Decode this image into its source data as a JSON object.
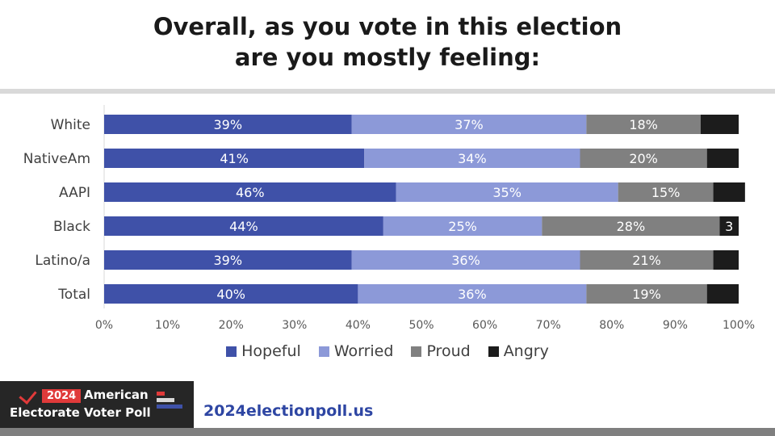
{
  "title": {
    "line1": "Overall, as you vote in this election",
    "line2": "are you mostly feeling:"
  },
  "colors": {
    "hopeful": "#3f51a8",
    "worried": "#8c99d8",
    "proud": "#808080",
    "angry": "#1c1c1c",
    "rule": "#d9d9d9",
    "footer_gray": "#7f7f7f",
    "brand_red": "#e03a3a",
    "brand_blue": "#2e46a3"
  },
  "chart_data": {
    "type": "bar",
    "orientation": "horizontal",
    "stacked": true,
    "categories": [
      "White",
      "NativeAm",
      "AAPI",
      "Black",
      "Latino/a",
      "Total"
    ],
    "series": [
      {
        "name": "Hopeful",
        "values": [
          39,
          41,
          46,
          44,
          39,
          40
        ],
        "labels": [
          "39%",
          "41%",
          "46%",
          "44%",
          "39%",
          "40%"
        ],
        "color": "#3f51a8"
      },
      {
        "name": "Worried",
        "values": [
          37,
          34,
          35,
          25,
          36,
          36
        ],
        "labels": [
          "37%",
          "34%",
          "35%",
          "25%",
          "36%",
          "36%"
        ],
        "color": "#8c99d8"
      },
      {
        "name": "Proud",
        "values": [
          18,
          20,
          15,
          28,
          21,
          19
        ],
        "labels": [
          "18%",
          "20%",
          "15%",
          "28%",
          "21%",
          "19%"
        ],
        "color": "#808080"
      },
      {
        "name": "Angry",
        "values": [
          6,
          5,
          5,
          3,
          4,
          5
        ],
        "labels": [
          "",
          "",
          "",
          "3",
          "",
          ""
        ],
        "color": "#1c1c1c"
      }
    ],
    "xlim": [
      0,
      100
    ],
    "x_ticks": [
      "0%",
      "10%",
      "20%",
      "30%",
      "40%",
      "50%",
      "60%",
      "70%",
      "80%",
      "90%",
      "100%"
    ],
    "grid": false,
    "legend_position": "bottom"
  },
  "footer": {
    "year": "2024",
    "brand_line1": "American",
    "brand_line2": "Electorate Voter Poll",
    "website": "2024electionpoll.us"
  }
}
